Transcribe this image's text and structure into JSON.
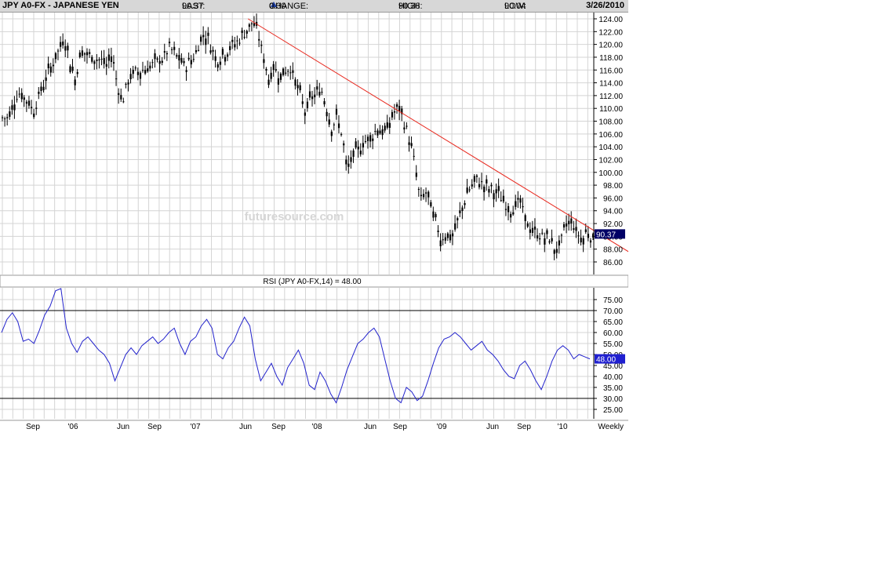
{
  "header": {
    "symbol": "JPY A0-FX - JAPANESE YEN",
    "last_label": "LAST:",
    "last": "90.37",
    "change_label": "CHANGE:",
    "change": "0.30",
    "change_icon": "up-triangle-icon",
    "high_label": "HIGH:",
    "high": "90.38",
    "low_label": "LOW:",
    "low": "90.04",
    "date": "3/26/2010"
  },
  "watermark": "futuresource.com",
  "rsi_title": "RSI (JPY A0-FX,14) = 48.00",
  "x_axis": {
    "labels": [
      "Sep",
      "'06",
      "Jun",
      "Sep",
      "'07",
      "Jun",
      "Sep",
      "'08",
      "Jun",
      "Sep",
      "'09",
      "Jun",
      "Sep",
      "'10"
    ],
    "period": "Weekly"
  },
  "colors": {
    "price_bars": "#000000",
    "trendline": "#e8281e",
    "rsi_line": "#2222cc",
    "grid": "#d4d4d4",
    "last_price_box": "#000066",
    "rsi_box": "#2020d0"
  },
  "chart_data": [
    {
      "type": "candlestick",
      "title": "JPY A0-FX - JAPANESE YEN",
      "ylabel": "",
      "ylim": [
        84.0,
        124.0
      ],
      "y_ticks": [
        "124.00",
        "122.00",
        "120.00",
        "118.00",
        "116.00",
        "114.00",
        "112.00",
        "110.00",
        "108.00",
        "106.00",
        "104.00",
        "102.00",
        "100.00",
        "98.00",
        "96.00",
        "94.00",
        "92.00",
        "90.00",
        "88.00",
        "86.00"
      ],
      "last_price_label": "90.37",
      "grid": true,
      "anchors": [
        [
          "Jul-2005",
          108.5
        ],
        [
          "Aug-2005",
          112.5
        ],
        [
          "Sep-2005",
          111.0
        ],
        [
          "Sep-2005",
          109.5
        ],
        [
          "Oct-2005",
          112.0
        ],
        [
          "Nov-2005",
          116.0
        ],
        [
          "Dec-2005",
          119.5
        ],
        [
          "Dec-2005",
          121.0
        ],
        [
          "Jan-2006",
          117.0
        ],
        [
          "Jan-2006",
          114.5
        ],
        [
          "Feb-2006",
          119.0
        ],
        [
          "Mar-2006",
          118.0
        ],
        [
          "Apr-2006",
          117.5
        ],
        [
          "Apr-2006",
          116.5
        ],
        [
          "May-2006",
          118.5
        ],
        [
          "May-2006",
          114.0
        ],
        [
          "Jun-2006",
          111.0
        ],
        [
          "Jun-2006",
          114.0
        ],
        [
          "Jul-2006",
          115.5
        ],
        [
          "Aug-2006",
          116.0
        ],
        [
          "Sep-2006",
          117.0
        ],
        [
          "Oct-2006",
          118.0
        ],
        [
          "Oct-2006",
          119.5
        ],
        [
          "Nov-2006",
          118.5
        ],
        [
          "Dec-2006",
          116.5
        ],
        [
          "Jan-2007",
          118.5
        ],
        [
          "Jan-2007",
          121.0
        ],
        [
          "Feb-2007",
          121.5
        ],
        [
          "Mar-2007",
          117.5
        ],
        [
          "Apr-2007",
          119.0
        ],
        [
          "May-2007",
          120.5
        ],
        [
          "Jun-2007",
          122.5
        ],
        [
          "Jun-2007",
          123.5
        ],
        [
          "Jul-2007",
          121.5
        ],
        [
          "Jul-2007",
          118.0
        ],
        [
          "Aug-2007",
          114.5
        ],
        [
          "Aug-2007",
          116.5
        ],
        [
          "Sep-2007",
          115.0
        ],
        [
          "Oct-2007",
          116.5
        ],
        [
          "Oct-2007",
          114.5
        ],
        [
          "Nov-2007",
          112.0
        ],
        [
          "Nov-2007",
          109.5
        ],
        [
          "Dec-2007",
          111.5
        ],
        [
          "Jan-2008",
          113.0
        ],
        [
          "Jan-2008",
          110.5
        ],
        [
          "Feb-2008",
          107.0
        ],
        [
          "Feb-2008",
          108.5
        ],
        [
          "Mar-2008",
          106.0
        ],
        [
          "Mar-2008",
          100.0
        ],
        [
          "Apr-2008",
          102.5
        ],
        [
          "May-2008",
          104.5
        ],
        [
          "Jun-2008",
          106.0
        ],
        [
          "Jun-2008",
          107.0
        ],
        [
          "Jul-2008",
          106.0
        ],
        [
          "Jul-2008",
          107.5
        ],
        [
          "Aug-2008",
          109.5
        ],
        [
          "Aug-2008",
          110.0
        ],
        [
          "Sep-2008",
          107.5
        ],
        [
          "Sep-2008",
          105.0
        ],
        [
          "Oct-2008",
          101.0
        ],
        [
          "Oct-2008",
          95.5
        ],
        [
          "Nov-2008",
          97.0
        ],
        [
          "Dec-2008",
          92.0
        ],
        [
          "Dec-2008",
          89.5
        ],
        [
          "Jan-2009",
          90.5
        ],
        [
          "Jan-2009",
          89.5
        ],
        [
          "Feb-2009",
          92.0
        ],
        [
          "Mar-2009",
          97.0
        ],
        [
          "Apr-2009",
          99.0
        ],
        [
          "Apr-2009",
          98.0
        ],
        [
          "May-2009",
          97.5
        ],
        [
          "Jun-2009",
          96.5
        ],
        [
          "Jun-2009",
          95.5
        ],
        [
          "Jul-2009",
          94.0
        ],
        [
          "Aug-2009",
          95.5
        ],
        [
          "Aug-2009",
          93.0
        ],
        [
          "Sep-2009",
          91.0
        ],
        [
          "Oct-2009",
          90.0
        ],
        [
          "Nov-2009",
          89.5
        ],
        [
          "Nov-2009",
          87.5
        ],
        [
          "Dec-2009",
          89.5
        ],
        [
          "Dec-2009",
          92.0
        ],
        [
          "Jan-2010",
          92.5
        ],
        [
          "Jan-2010",
          90.5
        ],
        [
          "Feb-2010",
          89.5
        ],
        [
          "Feb-2010",
          91.0
        ],
        [
          "Mar-2010",
          89.5
        ],
        [
          "Mar-2010",
          90.37
        ]
      ],
      "trendline": [
        [
          "Jun-2007",
          124.0
        ],
        [
          "Mar-2010",
          91.0
        ]
      ]
    },
    {
      "type": "line",
      "title": "RSI (JPY A0-FX,14) = 48.00",
      "ylim": [
        20.0,
        80.0
      ],
      "y_ticks": [
        "75.00",
        "70.00",
        "65.00",
        "60.00",
        "55.00",
        "50.00",
        "45.00",
        "40.00",
        "35.00",
        "30.00",
        "25.00"
      ],
      "reference_lines": [
        70,
        30
      ],
      "last_value_label": "48.00",
      "grid": true,
      "values": [
        60,
        66,
        69,
        65,
        56,
        57,
        55,
        61,
        68,
        72,
        79,
        80,
        62,
        55,
        51,
        56,
        58,
        55,
        52,
        50,
        46,
        38,
        44,
        50,
        53,
        50,
        54,
        56,
        58,
        55,
        57,
        60,
        62,
        55,
        50,
        56,
        58,
        63,
        66,
        62,
        50,
        48,
        53,
        56,
        62,
        67,
        63,
        48,
        38,
        42,
        46,
        40,
        36,
        44,
        48,
        52,
        46,
        36,
        34,
        42,
        38,
        32,
        28,
        35,
        43,
        49,
        55,
        57,
        60,
        62,
        58,
        48,
        38,
        30,
        28,
        35,
        33,
        29,
        31,
        38,
        46,
        53,
        57,
        58,
        60,
        58,
        55,
        52,
        54,
        56,
        52,
        50,
        47,
        43,
        40,
        39,
        45,
        47,
        43,
        38,
        34,
        40,
        47,
        52,
        54,
        52,
        48,
        50,
        49,
        48
      ]
    }
  ]
}
